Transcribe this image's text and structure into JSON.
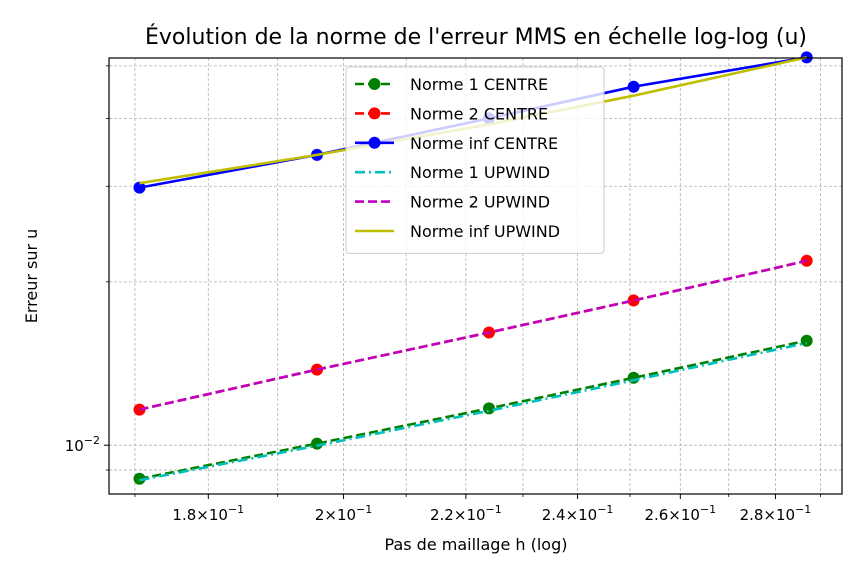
{
  "chart_data": {
    "type": "line",
    "title": "Évolution de la norme de l'erreur MMS en échelle log-log (u)",
    "xlabel": "Pas de maillage h (log)",
    "ylabel": "Erreur sur u",
    "xscale": "log",
    "yscale": "log",
    "xlim": [
      0.1666,
      0.2949
    ],
    "ylim": [
      0.00813,
      0.0517
    ],
    "grid": true,
    "legend_position": "upper center",
    "x": [
      0.1706,
      0.1959,
      0.224,
      0.2507,
      0.2869
    ],
    "series": [
      {
        "name": "Norme 1 CENTRE",
        "values": [
          0.00867,
          0.01007,
          0.01169,
          0.01331,
          0.01558
        ],
        "color": "#008000",
        "dash": "dash",
        "marker": "circle"
      },
      {
        "name": "Norme 2 CENTRE",
        "values": [
          0.01163,
          0.01378,
          0.01613,
          0.01848,
          0.02187
        ],
        "color": "#ff0000",
        "dash": "dash",
        "marker": "circle"
      },
      {
        "name": "Norme inf CENTRE",
        "values": [
          0.02983,
          0.03427,
          0.04002,
          0.04578,
          0.05184
        ],
        "color": "#0000ff",
        "dash": "solid",
        "marker": "circle"
      },
      {
        "name": "Norme 1 UPWIND",
        "values": [
          0.00862,
          0.00998,
          0.01157,
          0.01317,
          0.01543
        ],
        "color": "#00bfbf",
        "dash": "dashdot",
        "marker": "none"
      },
      {
        "name": "Norme 2 UPWIND",
        "values": [
          0.01163,
          0.01378,
          0.01613,
          0.01848,
          0.02187
        ],
        "color": "#bf00bf",
        "dash": "dash",
        "marker": "none"
      },
      {
        "name": "Norme inf UPWIND",
        "values": [
          0.0304,
          0.03427,
          0.039,
          0.04405,
          0.05184
        ],
        "color": "#bfbf00",
        "dash": "solid",
        "marker": "none"
      }
    ],
    "x_ticks": [
      {
        "value": 0.18,
        "mantissa": "1.8",
        "base": "10",
        "exp": "−1"
      },
      {
        "value": 0.2,
        "mantissa": "2",
        "base": "10",
        "exp": "−1"
      },
      {
        "value": 0.22,
        "mantissa": "2.2",
        "base": "10",
        "exp": "−1"
      },
      {
        "value": 0.24,
        "mantissa": "2.4",
        "base": "10",
        "exp": "−1"
      },
      {
        "value": 0.26,
        "mantissa": "2.6",
        "base": "10",
        "exp": "−1"
      },
      {
        "value": 0.28,
        "mantissa": "2.8",
        "base": "10",
        "exp": "−1"
      }
    ],
    "y_ticks": [
      {
        "value": 0.01,
        "base": "10",
        "exp": "−2"
      }
    ],
    "x_minor_grid": [
      0.17,
      0.19,
      0.21,
      0.23,
      0.25,
      0.27,
      0.29
    ],
    "y_minor_grid": [
      0.009,
      0.02,
      0.03,
      0.04,
      0.05
    ]
  }
}
